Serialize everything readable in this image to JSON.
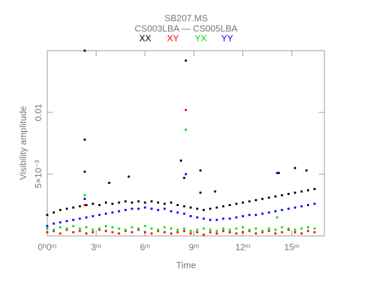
{
  "chart_data": {
    "type": "scatter",
    "title": "SB207.MS",
    "subtitle": "CS003LBA — CS005LBA",
    "x_label": "Time",
    "y_label": "Visibility amplitude",
    "xlim": [
      0,
      17
    ],
    "ylim": [
      0,
      0.015
    ],
    "xticks": [
      {
        "value": 0,
        "label": "0ʰ0ᵐ"
      },
      {
        "value": 3,
        "label": "3ᵐ"
      },
      {
        "value": 6,
        "label": "6ᵐ"
      },
      {
        "value": 9,
        "label": "9ᵐ"
      },
      {
        "value": 12,
        "label": "12ᵐ"
      },
      {
        "value": 15,
        "label": "15ᵐ"
      }
    ],
    "yticks": [
      {
        "value": 0.005,
        "label": "5×10⁻³"
      },
      0.01
    ],
    "series": [
      {
        "name": "XX",
        "color": "#000000",
        "x": [
          0,
          0.4,
          0.8,
          1.2,
          1.6,
          2,
          2.4,
          2.8,
          3.2,
          3.6,
          4,
          4.4,
          4.8,
          5.2,
          5.6,
          6,
          6.4,
          6.8,
          7.2,
          7.6,
          8,
          8.4,
          8.8,
          9.2,
          9.6,
          10,
          10.4,
          10.8,
          11.2,
          11.6,
          12,
          12.4,
          12.8,
          13.2,
          13.6,
          14,
          14.4,
          14.8,
          15.2,
          15.6,
          16,
          16.4,
          2.3,
          2.3,
          2.3,
          8.5,
          8.2,
          9.4,
          9.4,
          10.3,
          3.8,
          5,
          14.2,
          15.2,
          15.9,
          8.4
        ],
        "values": [
          0.0017,
          0.0019,
          0.0021,
          0.0022,
          0.0023,
          0.0024,
          0.0025,
          0.0026,
          0.0025,
          0.0027,
          0.0026,
          0.0027,
          0.0028,
          0.0027,
          0.0028,
          0.0027,
          0.0028,
          0.0027,
          0.0026,
          0.0027,
          0.0025,
          0.0024,
          0.0023,
          0.0022,
          0.0021,
          0.0022,
          0.0023,
          0.0024,
          0.0025,
          0.0026,
          0.0027,
          0.0028,
          0.0029,
          0.003,
          0.0031,
          0.0032,
          0.0033,
          0.0034,
          0.0035,
          0.0036,
          0.0037,
          0.0038,
          0.015,
          0.0078,
          0.0052,
          0.0142,
          0.0061,
          0.0053,
          0.0035,
          0.0036,
          0.0043,
          0.0048,
          0.0051,
          0.0055,
          0.0053,
          0.0047
        ]
      },
      {
        "name": "XY",
        "color": "#ff0000",
        "x": [
          0,
          0.4,
          0.8,
          1.2,
          1.6,
          2,
          2.4,
          2.8,
          3.2,
          3.6,
          4,
          4.4,
          4.8,
          5.2,
          5.6,
          6,
          6.4,
          6.8,
          7.2,
          7.6,
          8,
          8.4,
          8.8,
          9.2,
          9.6,
          10,
          10.4,
          10.8,
          11.2,
          11.6,
          12,
          12.4,
          12.8,
          13.2,
          13.6,
          14,
          14.4,
          14.8,
          15.2,
          15.6,
          16,
          16.4,
          8.5,
          2.3
        ],
        "values": [
          0.0003,
          0.0004,
          0.0002,
          0.0005,
          0.0003,
          0.0004,
          0.0002,
          0.0003,
          0.0005,
          0.0004,
          0.0003,
          0.0002,
          0.0004,
          0.0003,
          0.0005,
          0.0003,
          0.0002,
          0.0004,
          0.0003,
          0.0002,
          0.0003,
          0.0004,
          0.0002,
          0.0003,
          0.0001,
          0.0003,
          0.0002,
          0.0004,
          0.0003,
          0.0002,
          0.0003,
          0.0004,
          0.0002,
          0.0003,
          0.0004,
          0.0002,
          0.0003,
          0.0005,
          0.0003,
          0.0002,
          0.0004,
          0.0003,
          0.0102,
          0.0025
        ]
      },
      {
        "name": "YX",
        "color": "#00e000",
        "x": [
          0,
          0.4,
          0.8,
          1.2,
          1.6,
          2,
          2.4,
          2.8,
          3.2,
          3.6,
          4,
          4.4,
          4.8,
          5.2,
          5.6,
          6,
          6.4,
          6.8,
          7.2,
          7.6,
          8,
          8.4,
          8.8,
          9.2,
          9.6,
          10,
          10.4,
          10.8,
          11.2,
          11.6,
          12,
          12.4,
          12.8,
          13.2,
          13.6,
          14,
          14.4,
          14.8,
          15.2,
          15.6,
          16,
          16.4,
          8.5,
          2.3,
          14.1
        ],
        "values": [
          0.0006,
          0.0005,
          0.0007,
          0.0006,
          0.0008,
          0.0006,
          0.0007,
          0.0005,
          0.0006,
          0.0008,
          0.0007,
          0.0006,
          0.0005,
          0.0007,
          0.0006,
          0.0008,
          0.0006,
          0.0005,
          0.0007,
          0.0006,
          0.0005,
          0.0006,
          0.0004,
          0.0005,
          0.0006,
          0.0005,
          0.0004,
          0.0006,
          0.0005,
          0.0006,
          0.0007,
          0.0005,
          0.0006,
          0.0004,
          0.0006,
          0.0005,
          0.0007,
          0.0006,
          0.0005,
          0.0006,
          0.0007,
          0.0006,
          0.0086,
          0.0033,
          0.0015
        ]
      },
      {
        "name": "YY",
        "color": "#0000ff",
        "x": [
          0,
          0.4,
          0.8,
          1.2,
          1.6,
          2,
          2.4,
          2.8,
          3.2,
          3.6,
          4,
          4.4,
          4.8,
          5.2,
          5.6,
          6,
          6.4,
          6.8,
          7.2,
          7.6,
          8,
          8.4,
          8.8,
          9.2,
          9.6,
          10,
          10.4,
          10.8,
          11.2,
          11.6,
          12,
          12.4,
          12.8,
          13.2,
          13.6,
          14,
          14.4,
          14.8,
          15.2,
          15.6,
          16,
          16.4,
          8.5,
          14.1,
          2.3
        ],
        "values": [
          0.0008,
          0.001,
          0.0011,
          0.0012,
          0.0013,
          0.0014,
          0.0015,
          0.0016,
          0.0017,
          0.0018,
          0.0019,
          0.002,
          0.0021,
          0.0022,
          0.0022,
          0.0023,
          0.0022,
          0.0021,
          0.0022,
          0.002,
          0.0019,
          0.0018,
          0.0016,
          0.0015,
          0.0014,
          0.0013,
          0.0013,
          0.0014,
          0.0014,
          0.0015,
          0.0016,
          0.0017,
          0.0017,
          0.0018,
          0.0019,
          0.002,
          0.0021,
          0.0022,
          0.0023,
          0.0024,
          0.0025,
          0.0026,
          0.005,
          0.0051,
          0.003
        ]
      }
    ]
  }
}
